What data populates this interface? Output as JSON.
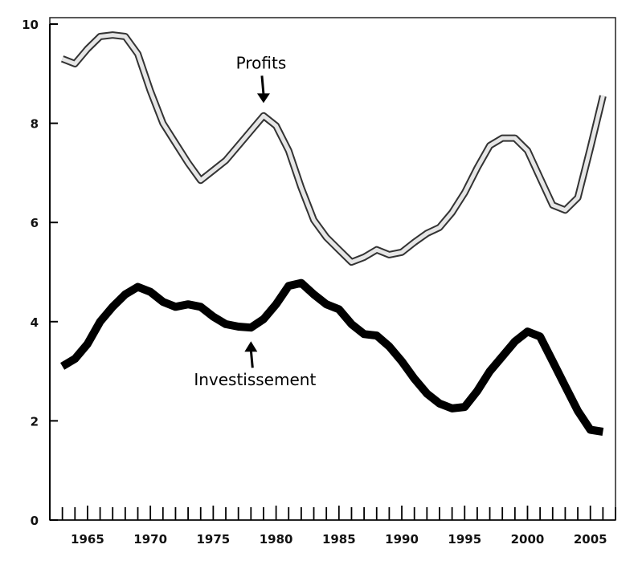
{
  "chart_data": {
    "type": "line",
    "title": "",
    "xlabel": "",
    "ylabel": "",
    "xlim": [
      1962,
      2007
    ],
    "ylim": [
      0,
      10
    ],
    "x_ticks": [
      1965,
      1970,
      1975,
      1980,
      1985,
      1990,
      1995,
      2000,
      2005
    ],
    "x_tick_labels": [
      "1965",
      "1970",
      "1975",
      "1980",
      "1985",
      "1990",
      "1995",
      "2000",
      "2005"
    ],
    "y_ticks": [
      0,
      2,
      4,
      6,
      8,
      10
    ],
    "y_tick_labels": [
      "0",
      "2",
      "4",
      "6",
      "8",
      "10"
    ],
    "grid": false,
    "legend": "none",
    "x": [
      1963,
      1964,
      1965,
      1966,
      1967,
      1968,
      1969,
      1970,
      1971,
      1972,
      1973,
      1974,
      1975,
      1976,
      1977,
      1978,
      1979,
      1980,
      1981,
      1982,
      1983,
      1984,
      1985,
      1986,
      1987,
      1988,
      1989,
      1990,
      1991,
      1992,
      1993,
      1994,
      1995,
      1996,
      1997,
      1998,
      1999,
      2000,
      2001,
      2002,
      2003,
      2004,
      2005,
      2006
    ],
    "series": [
      {
        "name": "Profits",
        "color": "#e6e6e6",
        "outline": "#333333",
        "values": [
          9.3,
          9.2,
          9.5,
          9.75,
          9.78,
          9.75,
          9.4,
          8.65,
          8.0,
          7.6,
          7.2,
          6.85,
          7.05,
          7.25,
          7.55,
          7.85,
          8.15,
          7.95,
          7.45,
          6.7,
          6.05,
          5.7,
          5.45,
          5.2,
          5.3,
          5.45,
          5.35,
          5.4,
          5.6,
          5.78,
          5.9,
          6.2,
          6.6,
          7.1,
          7.55,
          7.7,
          7.7,
          7.45,
          6.9,
          6.35,
          6.25,
          6.5,
          7.5,
          8.55
        ]
      },
      {
        "name": "Investissement",
        "color": "#000000",
        "values": [
          3.1,
          3.25,
          3.55,
          4.0,
          4.3,
          4.55,
          4.7,
          4.6,
          4.4,
          4.3,
          4.35,
          4.3,
          4.1,
          3.95,
          3.9,
          3.88,
          4.05,
          4.35,
          4.72,
          4.78,
          4.55,
          4.35,
          4.25,
          3.95,
          3.75,
          3.72,
          3.5,
          3.2,
          2.85,
          2.55,
          2.35,
          2.25,
          2.28,
          2.6,
          3.0,
          3.3,
          3.6,
          3.8,
          3.7,
          3.2,
          2.7,
          2.2,
          1.82,
          1.78
        ]
      }
    ],
    "annotations": [
      {
        "text": "Profits",
        "x": 1979,
        "y": 8.15
      },
      {
        "text": "Investissement",
        "x": 1978,
        "y": 3.88
      }
    ]
  }
}
